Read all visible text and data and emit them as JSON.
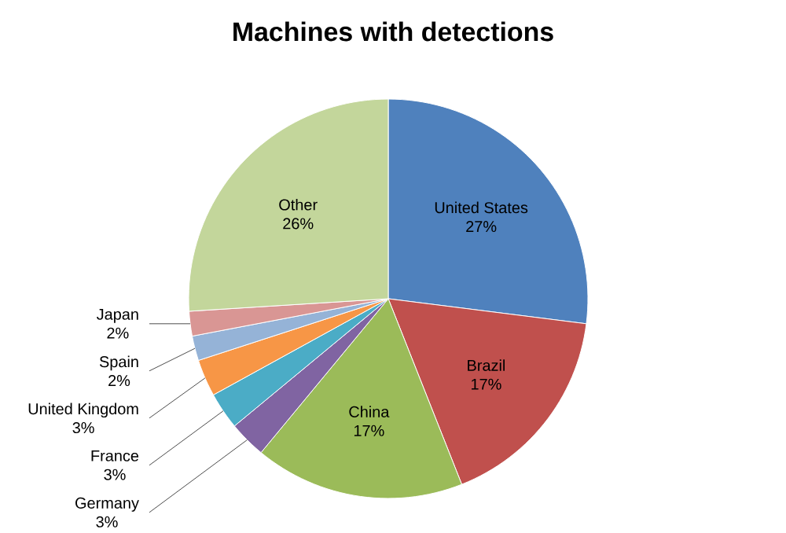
{
  "chart_data": {
    "type": "pie",
    "title": "Machines with detections",
    "categories": [
      "United States",
      "Brazil",
      "China",
      "Germany",
      "France",
      "United Kingdom",
      "Spain",
      "Japan",
      "Other"
    ],
    "values": [
      27,
      17,
      17,
      3,
      3,
      3,
      2,
      2,
      26
    ],
    "value_labels": [
      "27%",
      "17%",
      "17%",
      "3%",
      "3%",
      "3%",
      "2%",
      "2%",
      "26%"
    ],
    "colors": [
      "#4f81bd",
      "#c0504d",
      "#9bbb59",
      "#8064a2",
      "#4bacc6",
      "#f79646",
      "#95b3d7",
      "#d99694",
      "#c3d69b"
    ]
  }
}
